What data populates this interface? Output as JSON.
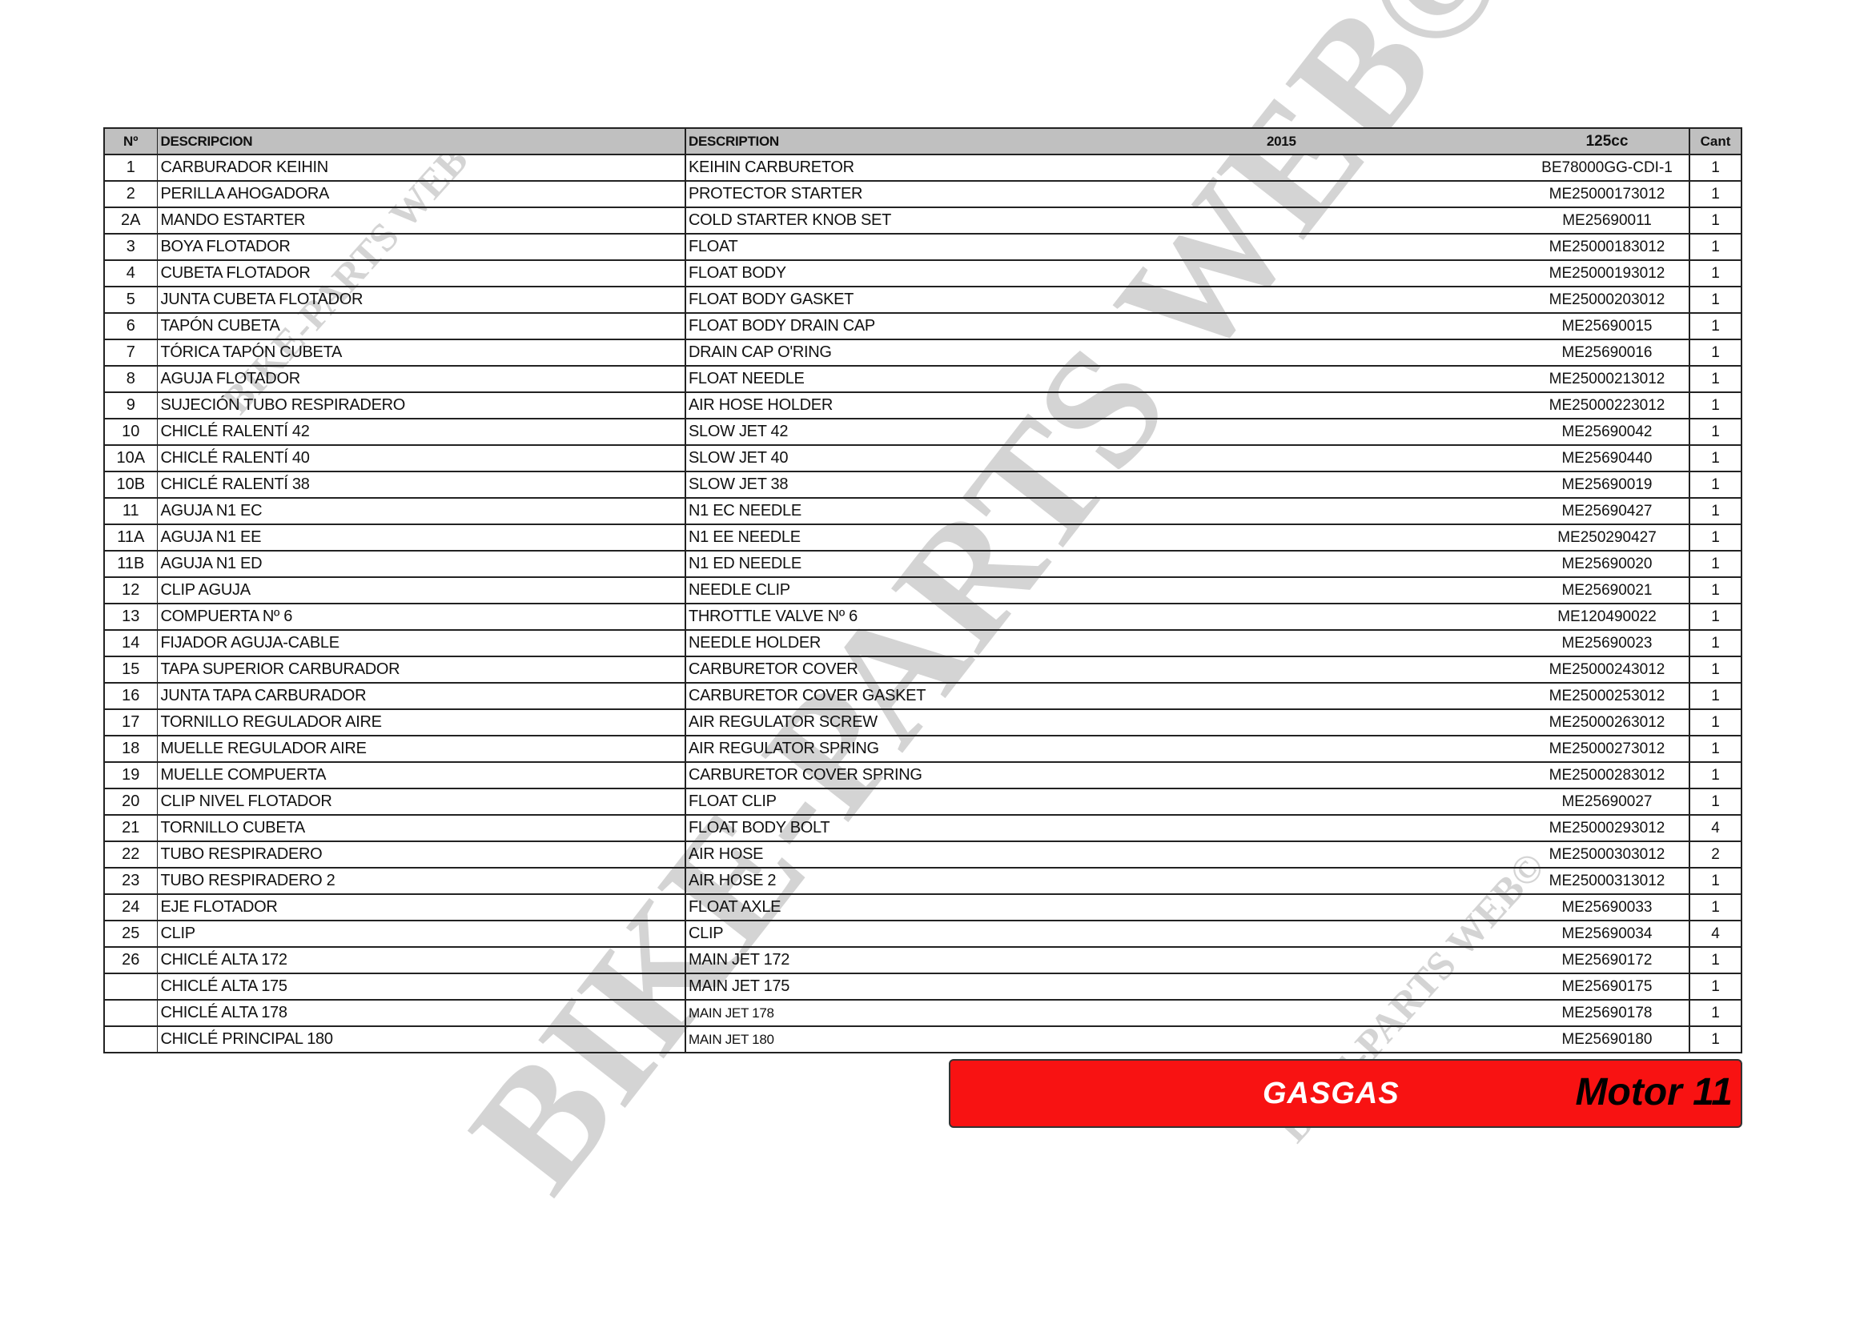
{
  "header": {
    "no": "Nº",
    "descripcion": "DESCRIPCION",
    "description": "DESCRIPTION",
    "year": "2015",
    "model": "125cc",
    "qty": "Cant"
  },
  "rows": [
    {
      "no": "1",
      "es": "CARBURADOR KEIHIN",
      "en": "KEIHIN CARBURETOR",
      "code": "BE78000GG-CDI-1",
      "qty": "1"
    },
    {
      "no": "2",
      "es": "PERILLA AHOGADORA",
      "en": "PROTECTOR STARTER",
      "code": "ME25000173012",
      "qty": "1"
    },
    {
      "no": "2A",
      "es": "MANDO ESTARTER",
      "en": "COLD STARTER KNOB SET",
      "code": "ME25690011",
      "qty": "1"
    },
    {
      "no": "3",
      "es": "BOYA FLOTADOR",
      "en": "FLOAT",
      "code": "ME25000183012",
      "qty": "1"
    },
    {
      "no": "4",
      "es": "CUBETA FLOTADOR",
      "en": "FLOAT BODY",
      "code": "ME25000193012",
      "qty": "1"
    },
    {
      "no": "5",
      "es": "JUNTA CUBETA FLOTADOR",
      "en": "FLOAT BODY GASKET",
      "code": "ME25000203012",
      "qty": "1"
    },
    {
      "no": "6",
      "es": "TAPÓN CUBETA",
      "en": "FLOAT BODY DRAIN CAP",
      "code": "ME25690015",
      "qty": "1"
    },
    {
      "no": "7",
      "es": "TÓRICA TAPÓN CUBETA",
      "en": "DRAIN CAP O'RING",
      "code": "ME25690016",
      "qty": "1"
    },
    {
      "no": "8",
      "es": "AGUJA FLOTADOR",
      "en": "FLOAT NEEDLE",
      "code": "ME25000213012",
      "qty": "1"
    },
    {
      "no": "9",
      "es": "SUJECIÓN TUBO RESPIRADERO",
      "en": "AIR HOSE HOLDER",
      "code": "ME25000223012",
      "qty": "1"
    },
    {
      "no": "10",
      "es": "CHICLÉ RALENTÍ 42",
      "en": "SLOW JET 42",
      "code": "ME25690042",
      "qty": "1"
    },
    {
      "no": "10A",
      "es": "CHICLÉ RALENTÍ 40",
      "en": "SLOW JET 40",
      "code": "ME25690440",
      "qty": "1"
    },
    {
      "no": "10B",
      "es": "CHICLÉ RALENTÍ 38",
      "en": "SLOW JET 38",
      "code": "ME25690019",
      "qty": "1"
    },
    {
      "no": "11",
      "es": "AGUJA N1 EC",
      "en": "N1 EC NEEDLE",
      "code": "ME25690427",
      "qty": "1"
    },
    {
      "no": "11A",
      "es": "AGUJA N1 EE",
      "en": "N1 EE NEEDLE",
      "code": "ME250290427",
      "qty": "1"
    },
    {
      "no": "11B",
      "es": "AGUJA N1 ED",
      "en": "N1 ED NEEDLE",
      "code": "ME25690020",
      "qty": "1"
    },
    {
      "no": "12",
      "es": "CLIP AGUJA",
      "en": "NEEDLE CLIP",
      "code": "ME25690021",
      "qty": "1"
    },
    {
      "no": "13",
      "es": "COMPUERTA Nº 6",
      "en": "THROTTLE VALVE Nº 6",
      "code": "ME120490022",
      "qty": "1"
    },
    {
      "no": "14",
      "es": "FIJADOR AGUJA-CABLE",
      "en": "NEEDLE HOLDER",
      "code": "ME25690023",
      "qty": "1"
    },
    {
      "no": "15",
      "es": "TAPA SUPERIOR CARBURADOR",
      "en": "CARBURETOR COVER",
      "code": "ME25000243012",
      "qty": "1"
    },
    {
      "no": "16",
      "es": "JUNTA TAPA CARBURADOR",
      "en": "CARBURETOR COVER GASKET",
      "code": "ME25000253012",
      "qty": "1"
    },
    {
      "no": "17",
      "es": "TORNILLO REGULADOR AIRE",
      "en": "AIR REGULATOR SCREW",
      "code": "ME25000263012",
      "qty": "1"
    },
    {
      "no": "18",
      "es": "MUELLE REGULADOR AIRE",
      "en": "AIR REGULATOR SPRING",
      "code": "ME25000273012",
      "qty": "1"
    },
    {
      "no": "19",
      "es": "MUELLE COMPUERTA",
      "en": "CARBURETOR COVER SPRING",
      "code": "ME25000283012",
      "qty": "1"
    },
    {
      "no": "20",
      "es": "CLIP NIVEL FLOTADOR",
      "en": "FLOAT CLIP",
      "code": "ME25690027",
      "qty": "1"
    },
    {
      "no": "21",
      "es": "TORNILLO CUBETA",
      "en": "FLOAT BODY BOLT",
      "code": "ME25000293012",
      "qty": "4"
    },
    {
      "no": "22",
      "es": "TUBO RESPIRADERO",
      "en": "AIR HOSE",
      "code": "ME25000303012",
      "qty": "2"
    },
    {
      "no": "23",
      "es": "TUBO RESPIRADERO 2",
      "en": "AIR HOSE 2",
      "code": "ME25000313012",
      "qty": "1"
    },
    {
      "no": "24",
      "es": "EJE FLOTADOR",
      "en": "FLOAT AXLE",
      "code": "ME25690033",
      "qty": "1"
    },
    {
      "no": "25",
      "es": "CLIP",
      "en": "CLIP",
      "code": "ME25690034",
      "qty": "4"
    },
    {
      "no": "26",
      "es": "CHICLÉ ALTA 172",
      "en": "MAIN JET 172",
      "code": "ME25690172",
      "qty": "1"
    },
    {
      "no": "",
      "es": "CHICLÉ ALTA 175",
      "en": "MAIN JET 175",
      "code": "ME25690175",
      "qty": "1"
    },
    {
      "no": "",
      "es": "CHICLÉ ALTA 178",
      "en": "MAIN JET 178",
      "code": "ME25690178",
      "qty": "1",
      "small": true
    },
    {
      "no": "",
      "es": "CHICLÉ PRINCIPAL 180",
      "en": "MAIN JET 180",
      "code": "ME25690180",
      "qty": "1",
      "small": true
    }
  ],
  "banner": {
    "brand": "GASGAS",
    "section": "Motor 11",
    "color": "#f81212"
  },
  "watermark": {
    "text": "BIKE-PARTS WEB©",
    "color": "#d0d0d0"
  }
}
